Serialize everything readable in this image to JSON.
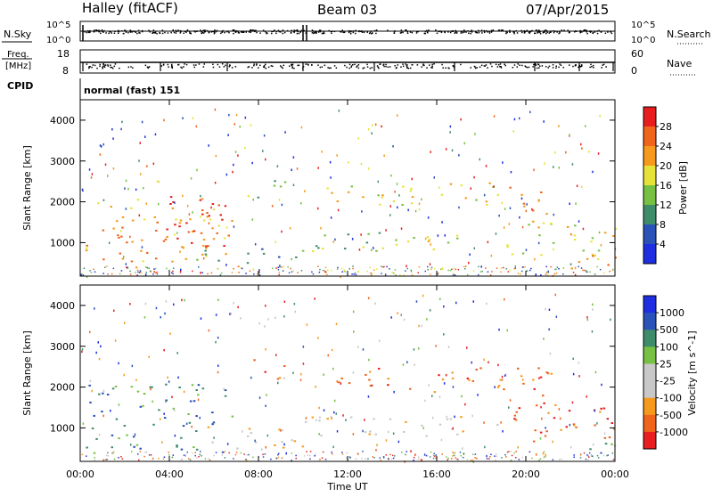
{
  "header": {
    "station": "Halley (fitACF)",
    "beam": "Beam 03",
    "date": "07/Apr/2015"
  },
  "noise_panel": {
    "left_label": "N.Sky",
    "left_ticks": [
      "10^5",
      "10^0"
    ],
    "right_label": "N.Search",
    "right_ticks": [
      "10^5",
      "10^0"
    ]
  },
  "freq_panel": {
    "left_label_line1": "Freq.",
    "left_label_line2": "[MHz]",
    "left_ticks": [
      "18",
      "8"
    ],
    "right_label": "Nave",
    "right_ticks": [
      "60",
      "0"
    ]
  },
  "cpid": {
    "label": "CPID",
    "mode": "normal (fast) 151"
  },
  "chart_data": [
    {
      "type": "heatmap",
      "name_label": "Power",
      "colorbar_label": "Power [dB]",
      "ylabel": "Slant Range [km]",
      "xlabel": "Time UT",
      "x_ticks": [
        "00:00",
        "04:00",
        "08:00",
        "12:00",
        "16:00",
        "20:00",
        "00:00"
      ],
      "x_range_hours": [
        0,
        24
      ],
      "y_ticks": [
        1000,
        2000,
        3000,
        4000
      ],
      "y_range_km": [
        180,
        4500
      ],
      "colorbar_ticks": [
        4,
        8,
        12,
        16,
        20,
        24,
        28
      ],
      "colorbar_range": [
        0,
        32
      ],
      "colors": [
        "#1e2ee0",
        "#2a52b8",
        "#3f8c6a",
        "#76c043",
        "#e6e23a",
        "#f59a1c",
        "#f0641c",
        "#e81e1e"
      ],
      "regions": [
        {
          "t0": 0.2,
          "t1": 6.8,
          "r0": 400,
          "r1": 2100,
          "level": 5
        },
        {
          "t0": 3.0,
          "t1": 6.5,
          "r0": 900,
          "r1": 2200,
          "level": 7
        },
        {
          "t0": 5.0,
          "t1": 10.0,
          "r0": 500,
          "r1": 900,
          "level": 2
        },
        {
          "t0": 7.5,
          "t1": 9.2,
          "r0": 2100,
          "r1": 2700,
          "level": 3
        },
        {
          "t0": 10.0,
          "t1": 17.0,
          "r0": 800,
          "r1": 1300,
          "level": 3
        },
        {
          "t0": 13.5,
          "t1": 16.5,
          "r0": 850,
          "r1": 1100,
          "level": 5
        },
        {
          "t0": 11.0,
          "t1": 19.0,
          "r0": 1900,
          "r1": 2500,
          "level": 4
        },
        {
          "t0": 19.2,
          "t1": 21.0,
          "r0": 1600,
          "r1": 2400,
          "level": 6
        },
        {
          "t0": 19.0,
          "t1": 24.0,
          "r0": 600,
          "r1": 1600,
          "level": 4
        },
        {
          "t0": 22.0,
          "t1": 24.0,
          "r0": 250,
          "r1": 700,
          "level": 5
        }
      ]
    },
    {
      "type": "heatmap",
      "name_label": "Velocity",
      "colorbar_label": "Velocity [m s^-1]",
      "ylabel": "Slant Range [km]",
      "xlabel": "Time UT",
      "x_ticks": [
        "00:00",
        "04:00",
        "08:00",
        "12:00",
        "16:00",
        "20:00",
        "00:00"
      ],
      "x_range_hours": [
        0,
        24
      ],
      "y_ticks": [
        1000,
        2000,
        3000,
        4000
      ],
      "y_range_km": [
        180,
        4500
      ],
      "colorbar_ticks": [
        "1000",
        "500",
        "100",
        "25",
        "-25",
        "-100",
        "-500",
        "-1000"
      ],
      "colors": [
        "#e81e1e",
        "#f0641c",
        "#f59a1c",
        "#c8c8c8",
        "#c8c8c8",
        "#76c043",
        "#3f8c6a",
        "#2a52b8",
        "#1e2ee0"
      ],
      "regions": [
        {
          "t0": 0.2,
          "t1": 6.8,
          "r0": 400,
          "r1": 2100,
          "level": 6
        },
        {
          "t0": 5.5,
          "t1": 10.0,
          "r0": 500,
          "r1": 1100,
          "level": 3
        },
        {
          "t0": 7.5,
          "t1": 9.2,
          "r0": 2200,
          "r1": 2700,
          "level": 1
        },
        {
          "t0": 10.0,
          "t1": 19.0,
          "r0": 800,
          "r1": 1300,
          "level": 3
        },
        {
          "t0": 11.0,
          "t1": 19.0,
          "r0": 1900,
          "r1": 2500,
          "level": 1
        },
        {
          "t0": 19.0,
          "t1": 21.2,
          "r0": 1500,
          "r1": 2500,
          "level": 1
        },
        {
          "t0": 19.0,
          "t1": 24.0,
          "r0": 600,
          "r1": 1600,
          "level": 1
        },
        {
          "t0": 22.0,
          "t1": 24.0,
          "r0": 250,
          "r1": 700,
          "level": 5
        }
      ]
    }
  ]
}
